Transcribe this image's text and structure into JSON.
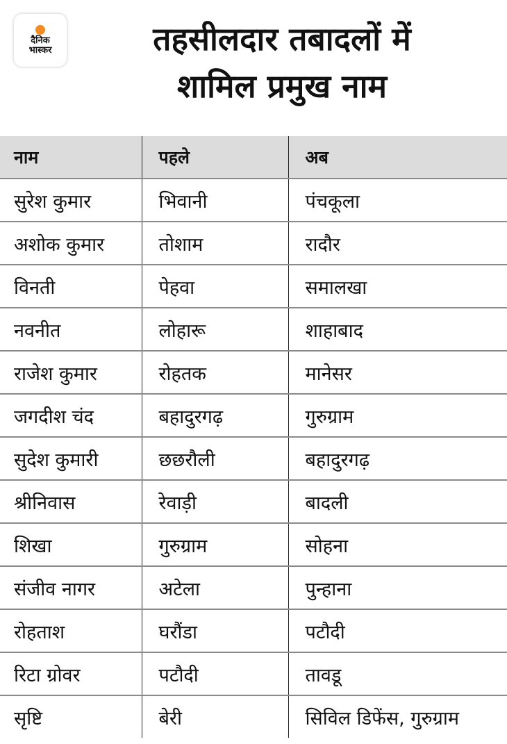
{
  "brand": {
    "line1": "दैनिक",
    "line2": "भास्कर",
    "accent": "#f28b22"
  },
  "title": {
    "line1": "तहसीलदार तबादलों में",
    "line2": "शामिल प्रमुख नाम"
  },
  "table": {
    "headers": [
      "नाम",
      "पहले",
      "अब"
    ],
    "rows": [
      [
        "सुरेश कुमार",
        "भिवानी",
        "पंचकूला"
      ],
      [
        "अशोक कुमार",
        "तोशाम",
        "रादौर"
      ],
      [
        "विनती",
        "पेहवा",
        "समालखा"
      ],
      [
        "नवनीत",
        "लोहारू",
        "शाहाबाद"
      ],
      [
        "राजेश कुमार",
        "रोहतक",
        "मानेसर"
      ],
      [
        "जगदीश चंद",
        "बहादुरगढ़",
        "गुरुग्राम"
      ],
      [
        "सुदेश कुमारी",
        "छछरौली",
        "बहादुरगढ़"
      ],
      [
        "श्रीनिवास",
        "रेवाड़ी",
        "बादली"
      ],
      [
        "शिखा",
        "गुरुग्राम",
        "सोहना"
      ],
      [
        "संजीव नागर",
        "अटेला",
        "पुन्हाना"
      ],
      [
        "रोहताश",
        "घरौंडा",
        "पटौदी"
      ],
      [
        "रिटा ग्रोवर",
        "पटौदी",
        "तावडू"
      ],
      [
        "सृष्टि",
        "बेरी",
        "सिविल डिफेंस, गुरुग्राम"
      ]
    ]
  }
}
